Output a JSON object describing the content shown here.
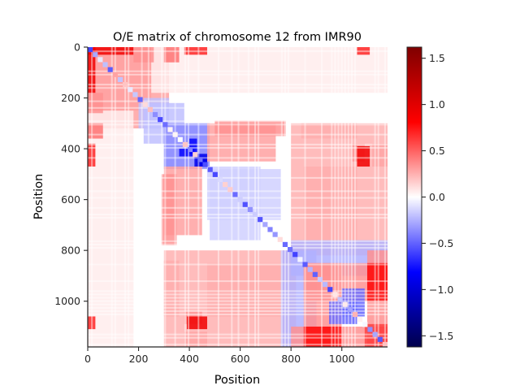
{
  "chart_data": {
    "type": "heatmap",
    "title": "O/E matrix of chromosome 12 from IMR90",
    "xlabel": "Position",
    "ylabel": "Position",
    "xlim": [
      0,
      1180
    ],
    "ylim": [
      1180,
      0
    ],
    "x_ticks": [
      "0",
      "200",
      "400",
      "600",
      "800",
      "1000"
    ],
    "x_tick_values": [
      0,
      200,
      400,
      600,
      800,
      1000
    ],
    "y_ticks": [
      "0",
      "200",
      "400",
      "600",
      "800",
      "1000"
    ],
    "y_tick_values": [
      0,
      200,
      400,
      600,
      800,
      1000
    ],
    "colormap": "seismic",
    "colorbar": {
      "min": -1.62,
      "max": 1.62,
      "ticks": [
        "−1.5",
        "−1.0",
        "−0.5",
        "0.0",
        "0.5",
        "1.0",
        "1.5"
      ],
      "tick_values": [
        -1.5,
        -1.0,
        -0.5,
        0.0,
        0.5,
        1.0,
        1.5
      ],
      "colors": [
        "#00004c",
        "#0000ff",
        "#ffffff",
        "#ff0000",
        "#7f0000"
      ]
    },
    "symmetric": true,
    "matrix_size": 1180,
    "blocks": [
      {
        "x": [
          0,
          250
        ],
        "y": [
          0,
          320
        ],
        "value": 0.3
      },
      {
        "x": [
          250,
          1180
        ],
        "y": [
          0,
          180
        ],
        "value": 0.06
      },
      {
        "x": [
          0,
          180
        ],
        "y": [
          0,
          30
        ],
        "value": 0.9
      },
      {
        "x": [
          180,
          260
        ],
        "y": [
          0,
          60
        ],
        "value": 0.35
      },
      {
        "x": [
          300,
          360
        ],
        "y": [
          0,
          60
        ],
        "value": 0.45
      },
      {
        "x": [
          220,
          320
        ],
        "y": [
          200,
          380
        ],
        "value": -0.2
      },
      {
        "x": [
          300,
          480
        ],
        "y": [
          300,
          470
        ],
        "value": -0.35
      },
      {
        "x": [
          400,
          430
        ],
        "y": [
          360,
          420
        ],
        "value": -0.8
      },
      {
        "x": [
          430,
          470
        ],
        "y": [
          420,
          470
        ],
        "value": -0.9
      },
      {
        "x": [
          480,
          680
        ],
        "y": [
          470,
          760
        ],
        "value": -0.15
      },
      {
        "x": [
          300,
          450
        ],
        "y": [
          470,
          740
        ],
        "value": 0.3
      },
      {
        "x": [
          500,
          780
        ],
        "y": [
          290,
          350
        ],
        "value": 0.35
      },
      {
        "x": [
          840,
          1060
        ],
        "y": [
          300,
          360
        ],
        "value": 0.3
      },
      {
        "x": [
          1040,
          1090
        ],
        "y": [
          380,
          450
        ],
        "value": 0.85
      },
      {
        "x": [
          1120,
          1180
        ],
        "y": [
          380,
          470
        ],
        "value": 0.5
      },
      {
        "x": [
          0,
          30
        ],
        "y": [
          380,
          470
        ],
        "value": 0.7
      },
      {
        "x": [
          850,
          1060
        ],
        "y": [
          470,
          760
        ],
        "value": 0.3
      },
      {
        "x": [
          300,
          820
        ],
        "y": [
          800,
          1180
        ],
        "value": 0.25
      },
      {
        "x": [
          800,
          1180
        ],
        "y": [
          760,
          900
        ],
        "value": -0.25
      },
      {
        "x": [
          850,
          1000
        ],
        "y": [
          850,
          1180
        ],
        "value": 0.35
      },
      {
        "x": [
          950,
          1060
        ],
        "y": [
          1000,
          1090
        ],
        "value": -0.5
      },
      {
        "x": [
          1100,
          1180
        ],
        "y": [
          800,
          1100
        ],
        "value": 0.35
      },
      {
        "x": [
          1100,
          1180
        ],
        "y": [
          1090,
          1180
        ],
        "value": 0.6
      },
      {
        "x": [
          850,
          1000
        ],
        "y": [
          1100,
          1180
        ],
        "value": 0.8
      },
      {
        "x": [
          390,
          470
        ],
        "y": [
          1060,
          1110
        ],
        "value": 0.9
      },
      {
        "x": [
          0,
          30
        ],
        "y": [
          1060,
          1110
        ],
        "value": 0.7
      }
    ]
  }
}
